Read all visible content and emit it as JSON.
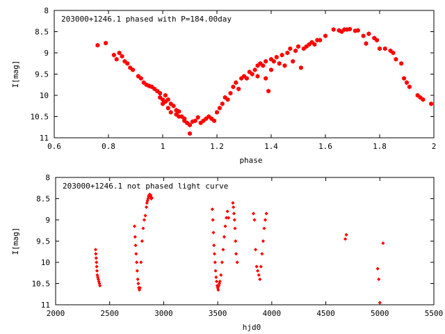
{
  "chart_data": [
    {
      "type": "scatter",
      "title": "203000+1246.1 phased with P=184.00day",
      "xlabel": "phase",
      "ylabel": "I[mag]",
      "xlim": [
        0.6,
        2.0
      ],
      "ylim": [
        8,
        11
      ],
      "y_inverted": true,
      "x_ticks": [
        "0.6",
        "0.8",
        "1",
        "1.2",
        "1.4",
        "1.6",
        "1.8",
        "2"
      ],
      "y_ticks": [
        "8",
        "8.5",
        "9",
        "9.5",
        "10",
        "10.5",
        "11"
      ],
      "marker": "filled-hexagon",
      "color": "#ff0000",
      "series": [
        {
          "x": [
            0.76,
            0.79,
            0.82,
            0.83,
            0.84,
            0.85,
            0.86,
            0.87,
            0.88,
            0.89,
            0.91,
            0.92,
            0.93,
            0.94,
            0.95,
            0.96,
            0.97,
            0.98,
            0.99,
            0.99,
            1.0,
            1.0,
            1.01,
            1.01,
            1.02,
            1.02,
            1.03,
            1.03,
            1.04,
            1.05,
            1.05,
            1.06,
            1.06,
            1.07,
            1.08,
            1.08,
            1.09,
            1.1,
            1.1,
            1.11,
            1.12,
            1.13,
            1.14,
            1.15,
            1.16,
            1.17,
            1.18,
            1.19,
            1.2,
            1.21,
            1.22,
            1.23,
            1.24,
            1.25,
            1.26,
            1.27,
            1.28,
            1.29,
            1.3,
            1.31,
            1.32,
            1.33,
            1.34,
            1.35,
            1.35,
            1.36,
            1.37,
            1.38,
            1.38,
            1.39,
            1.4,
            1.4,
            1.41,
            1.42,
            1.43,
            1.44,
            1.45,
            1.46,
            1.47,
            1.48,
            1.49,
            1.5,
            1.51,
            1.52,
            1.53,
            1.54,
            1.55,
            1.56,
            1.57,
            1.58,
            1.6,
            1.63,
            1.65,
            1.66,
            1.67,
            1.68,
            1.69,
            1.71,
            1.72,
            1.74,
            1.75,
            1.76,
            1.78,
            1.79,
            1.8,
            1.82,
            1.84,
            1.85,
            1.86,
            1.88,
            1.89,
            1.9,
            1.91,
            1.94,
            1.95,
            1.96,
            1.99
          ],
          "y": [
            8.82,
            8.77,
            9.05,
            9.15,
            9.0,
            9.08,
            9.2,
            9.25,
            9.35,
            9.4,
            9.55,
            9.6,
            9.7,
            9.75,
            9.78,
            9.8,
            9.85,
            9.9,
            9.95,
            10.05,
            10.1,
            10.2,
            10.0,
            10.15,
            10.1,
            10.3,
            10.4,
            10.2,
            10.25,
            10.35,
            10.45,
            10.38,
            10.5,
            10.5,
            10.6,
            10.55,
            10.65,
            10.7,
            10.9,
            10.62,
            10.6,
            10.52,
            10.65,
            10.6,
            10.55,
            10.5,
            10.55,
            10.6,
            10.4,
            10.3,
            10.2,
            10.05,
            10.1,
            9.95,
            9.8,
            9.7,
            9.85,
            9.6,
            9.55,
            9.6,
            9.45,
            9.5,
            9.4,
            9.55,
            9.3,
            9.25,
            9.3,
            9.2,
            9.6,
            9.9,
            9.15,
            9.4,
            9.2,
            9.1,
            9.25,
            9.05,
            9.3,
            9.0,
            8.9,
            9.2,
            8.95,
            8.85,
            9.35,
            8.9,
            8.85,
            8.8,
            8.75,
            8.8,
            8.7,
            8.7,
            8.6,
            8.45,
            8.47,
            8.5,
            8.45,
            8.45,
            8.44,
            8.48,
            8.47,
            8.6,
            8.78,
            8.55,
            8.65,
            8.7,
            8.9,
            8.9,
            8.95,
            9.0,
            9.15,
            9.25,
            9.6,
            9.7,
            9.8,
            10.0,
            10.05,
            10.1,
            10.2
          ]
        }
      ]
    },
    {
      "type": "scatter",
      "title": "203000+1246.1 not phased light curve",
      "xlabel": "hjd0",
      "ylabel": "I[mag]",
      "xlim": [
        2000,
        5500
      ],
      "ylim": [
        8,
        11
      ],
      "y_inverted": true,
      "x_ticks": [
        "2000",
        "2500",
        "3000",
        "3500",
        "4000",
        "4500",
        "5000",
        "5500"
      ],
      "y_ticks": [
        "8",
        "8.5",
        "9",
        "9.5",
        "10",
        "10.5",
        "11"
      ],
      "marker": "filled-diamond",
      "color": "#ff0000",
      "series": [
        {
          "x": [
            2370,
            2372,
            2375,
            2378,
            2380,
            2383,
            2386,
            2390,
            2395,
            2400,
            2405,
            2410,
            2730,
            2735,
            2740,
            2745,
            2750,
            2755,
            2760,
            2765,
            2770,
            2775,
            2780,
            2790,
            2800,
            2810,
            2820,
            2830,
            2840,
            2845,
            2850,
            2855,
            2860,
            2865,
            2870,
            2875,
            2880,
            2885,
            2890,
            3450,
            3455,
            3460,
            3465,
            3470,
            3475,
            3480,
            3485,
            3490,
            3495,
            3500,
            3505,
            3510,
            3515,
            3520,
            3530,
            3540,
            3550,
            3560,
            3570,
            3580,
            3590,
            3600,
            3640,
            3645,
            3650,
            3655,
            3660,
            3665,
            3670,
            3680,
            3830,
            3840,
            3850,
            3860,
            3870,
            3880,
            3890,
            3900,
            3910,
            3920,
            3930,
            3940,
            3950,
            4680,
            4690,
            4980,
            4990,
            5000,
            5030
          ],
          "y": [
            9.7,
            9.8,
            9.9,
            10.0,
            10.1,
            10.2,
            10.3,
            10.35,
            10.4,
            10.45,
            10.5,
            10.55,
            9.15,
            9.4,
            9.6,
            9.8,
            10.0,
            10.2,
            10.4,
            10.5,
            10.6,
            10.65,
            10.6,
            10.0,
            9.5,
            9.2,
            9.0,
            8.9,
            8.7,
            8.6,
            8.55,
            8.5,
            8.45,
            8.42,
            8.4,
            8.45,
            8.42,
            8.5,
            8.48,
            8.75,
            9.0,
            9.3,
            9.6,
            9.8,
            10.0,
            10.2,
            10.35,
            10.45,
            10.55,
            10.6,
            10.65,
            10.55,
            10.5,
            10.45,
            10.3,
            10.0,
            9.7,
            9.4,
            9.15,
            8.95,
            8.8,
            8.95,
            8.6,
            8.7,
            8.85,
            9.0,
            9.2,
            9.5,
            9.8,
            10.0,
            8.85,
            9.0,
            9.7,
            10.1,
            10.2,
            10.3,
            10.4,
            10.1,
            9.8,
            9.5,
            9.2,
            9.0,
            8.85,
            9.45,
            9.35,
            10.15,
            10.4,
            10.95,
            9.55
          ]
        }
      ]
    }
  ]
}
